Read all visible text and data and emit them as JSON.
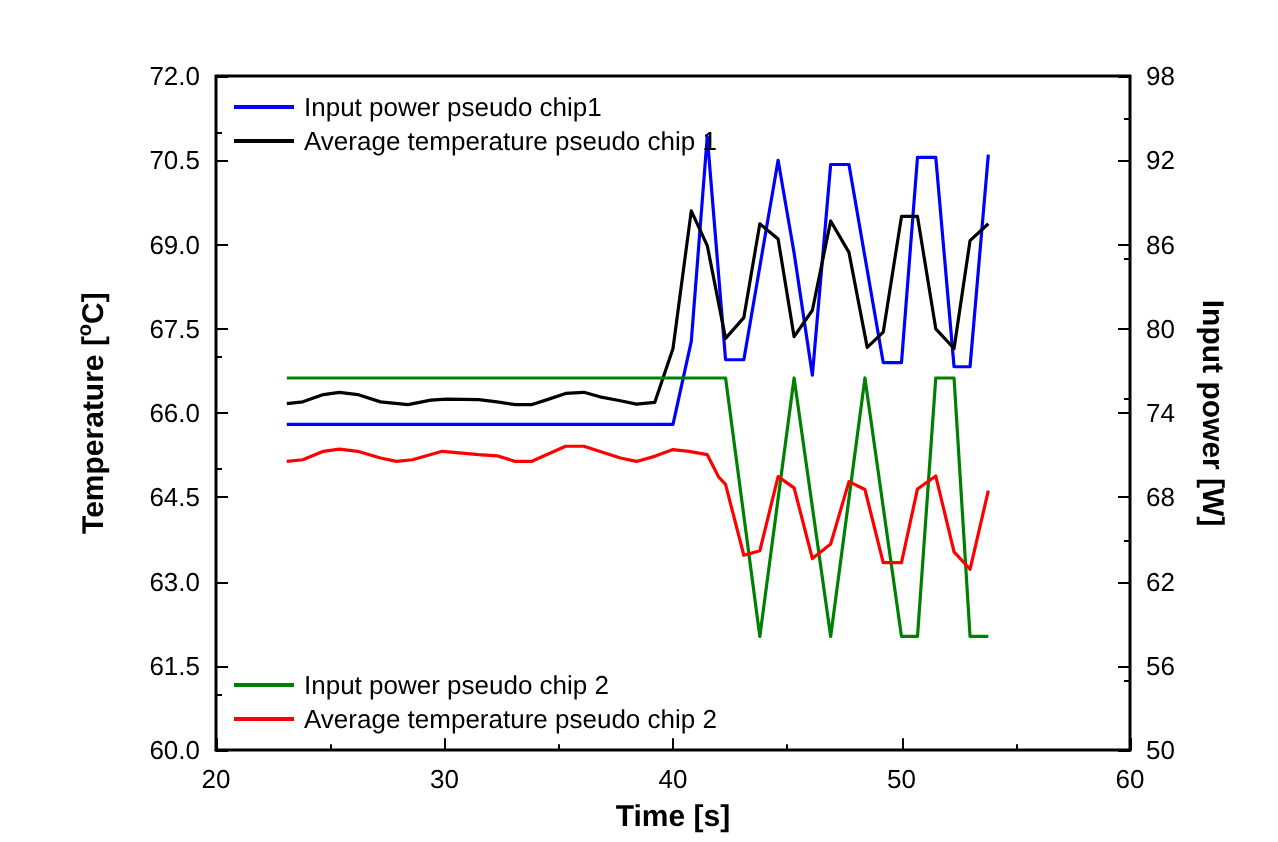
{
  "chart_data": {
    "type": "line",
    "xlabel": "Time [s]",
    "ylabel": "Temperature [$^{o}$C]",
    "y2label": "Input power [W]",
    "xlim": [
      20,
      60
    ],
    "xticks": [
      20,
      30,
      40,
      50,
      60
    ],
    "ylim": [
      60,
      72
    ],
    "yticks": [
      {
        "value": 60,
        "label": "60.0"
      },
      {
        "value": 61.5,
        "label": "61.5"
      },
      {
        "value": 63,
        "label": "63.0"
      },
      {
        "value": 64.5,
        "label": "64.5"
      },
      {
        "value": 66,
        "label": "66.0"
      },
      {
        "value": 67.5,
        "label": "67.5"
      },
      {
        "value": 69,
        "label": "69.0"
      },
      {
        "value": 70.5,
        "label": "70.5"
      },
      {
        "value": 72,
        "label": "72.0"
      }
    ],
    "y2lim": [
      50,
      98
    ],
    "y2ticks": [
      50,
      56,
      62,
      68,
      74,
      80,
      86,
      92,
      98
    ],
    "grid": false,
    "legend": "left",
    "marker": "none",
    "line_style": "solid",
    "series": [
      {
        "name": "Input power pseudo chip1",
        "color": "#0000ff",
        "axis": "y2",
        "x": [
          23.1,
          40.0,
          40.8,
          41.5,
          42.3,
          43.1,
          44.6,
          45.3,
          46.1,
          46.9,
          47.7,
          49.2,
          50.0,
          50.7,
          51.5,
          52.3,
          53.0,
          53.8
        ],
        "values": [
          73.2,
          73.2,
          79.1,
          93.7,
          77.8,
          77.8,
          92.0,
          85.4,
          76.7,
          91.7,
          91.7,
          77.6,
          77.6,
          92.2,
          92.2,
          77.3,
          77.3,
          92.4
        ]
      },
      {
        "name": "Average temperature pseudo chip 1",
        "color": "#000000",
        "x": [
          23.1,
          23.8,
          24.7,
          25.4,
          26.2,
          27.2,
          28.4,
          29.4,
          30.1,
          31.5,
          32.3,
          33.1,
          33.8,
          34.5,
          35.3,
          36.1,
          36.8,
          37.7,
          38.4,
          39.2,
          40.0,
          40.8,
          41.5,
          42.3,
          43.1,
          43.8,
          44.6,
          45.3,
          46.1,
          46.9,
          47.7,
          48.5,
          49.2,
          50.0,
          50.7,
          51.5,
          52.3,
          53.0,
          53.8
        ],
        "values": [
          66.17,
          66.2,
          66.33,
          66.37,
          66.33,
          66.2,
          66.15,
          66.23,
          66.25,
          66.24,
          66.2,
          66.15,
          66.15,
          66.24,
          66.35,
          66.37,
          66.29,
          66.22,
          66.16,
          66.19,
          67.15,
          69.6,
          68.98,
          67.33,
          67.7,
          69.37,
          69.1,
          67.36,
          67.83,
          69.42,
          68.86,
          67.17,
          67.44,
          69.5,
          69.5,
          67.5,
          67.15,
          69.07,
          69.37
        ]
      },
      {
        "name": "Input power pseudo chip 2",
        "color": "#008000",
        "axis": "y2",
        "x": [
          23.1,
          42.3,
          43.8,
          45.3,
          46.9,
          48.4,
          50.0,
          50.7,
          51.5,
          52.3,
          53.0,
          53.8
        ],
        "values": [
          76.5,
          76.5,
          58.1,
          76.5,
          58.1,
          76.5,
          58.1,
          58.1,
          76.5,
          76.5,
          58.1,
          58.1
        ]
      },
      {
        "name": "Average temperature pseudo chip 2",
        "color": "#ff0000",
        "x": [
          23.1,
          23.8,
          24.7,
          25.4,
          26.2,
          27.2,
          27.9,
          28.6,
          29.9,
          31.5,
          32.3,
          33.1,
          33.8,
          35.3,
          36.1,
          37.7,
          38.4,
          39.2,
          40.0,
          40.7,
          41.5,
          42.0,
          42.3,
          43.1,
          43.8,
          44.6,
          45.3,
          46.1,
          46.9,
          47.7,
          48.4,
          49.2,
          50.0,
          50.7,
          51.5,
          52.3,
          53.0,
          53.8
        ],
        "values": [
          65.14,
          65.17,
          65.32,
          65.36,
          65.32,
          65.2,
          65.14,
          65.17,
          65.32,
          65.26,
          65.24,
          65.14,
          65.14,
          65.41,
          65.41,
          65.2,
          65.14,
          65.23,
          65.35,
          65.32,
          65.26,
          64.86,
          64.73,
          63.47,
          63.55,
          64.87,
          64.67,
          63.41,
          63.67,
          64.78,
          64.64,
          63.34,
          63.34,
          64.65,
          64.88,
          63.53,
          63.22,
          64.62
        ]
      }
    ]
  }
}
